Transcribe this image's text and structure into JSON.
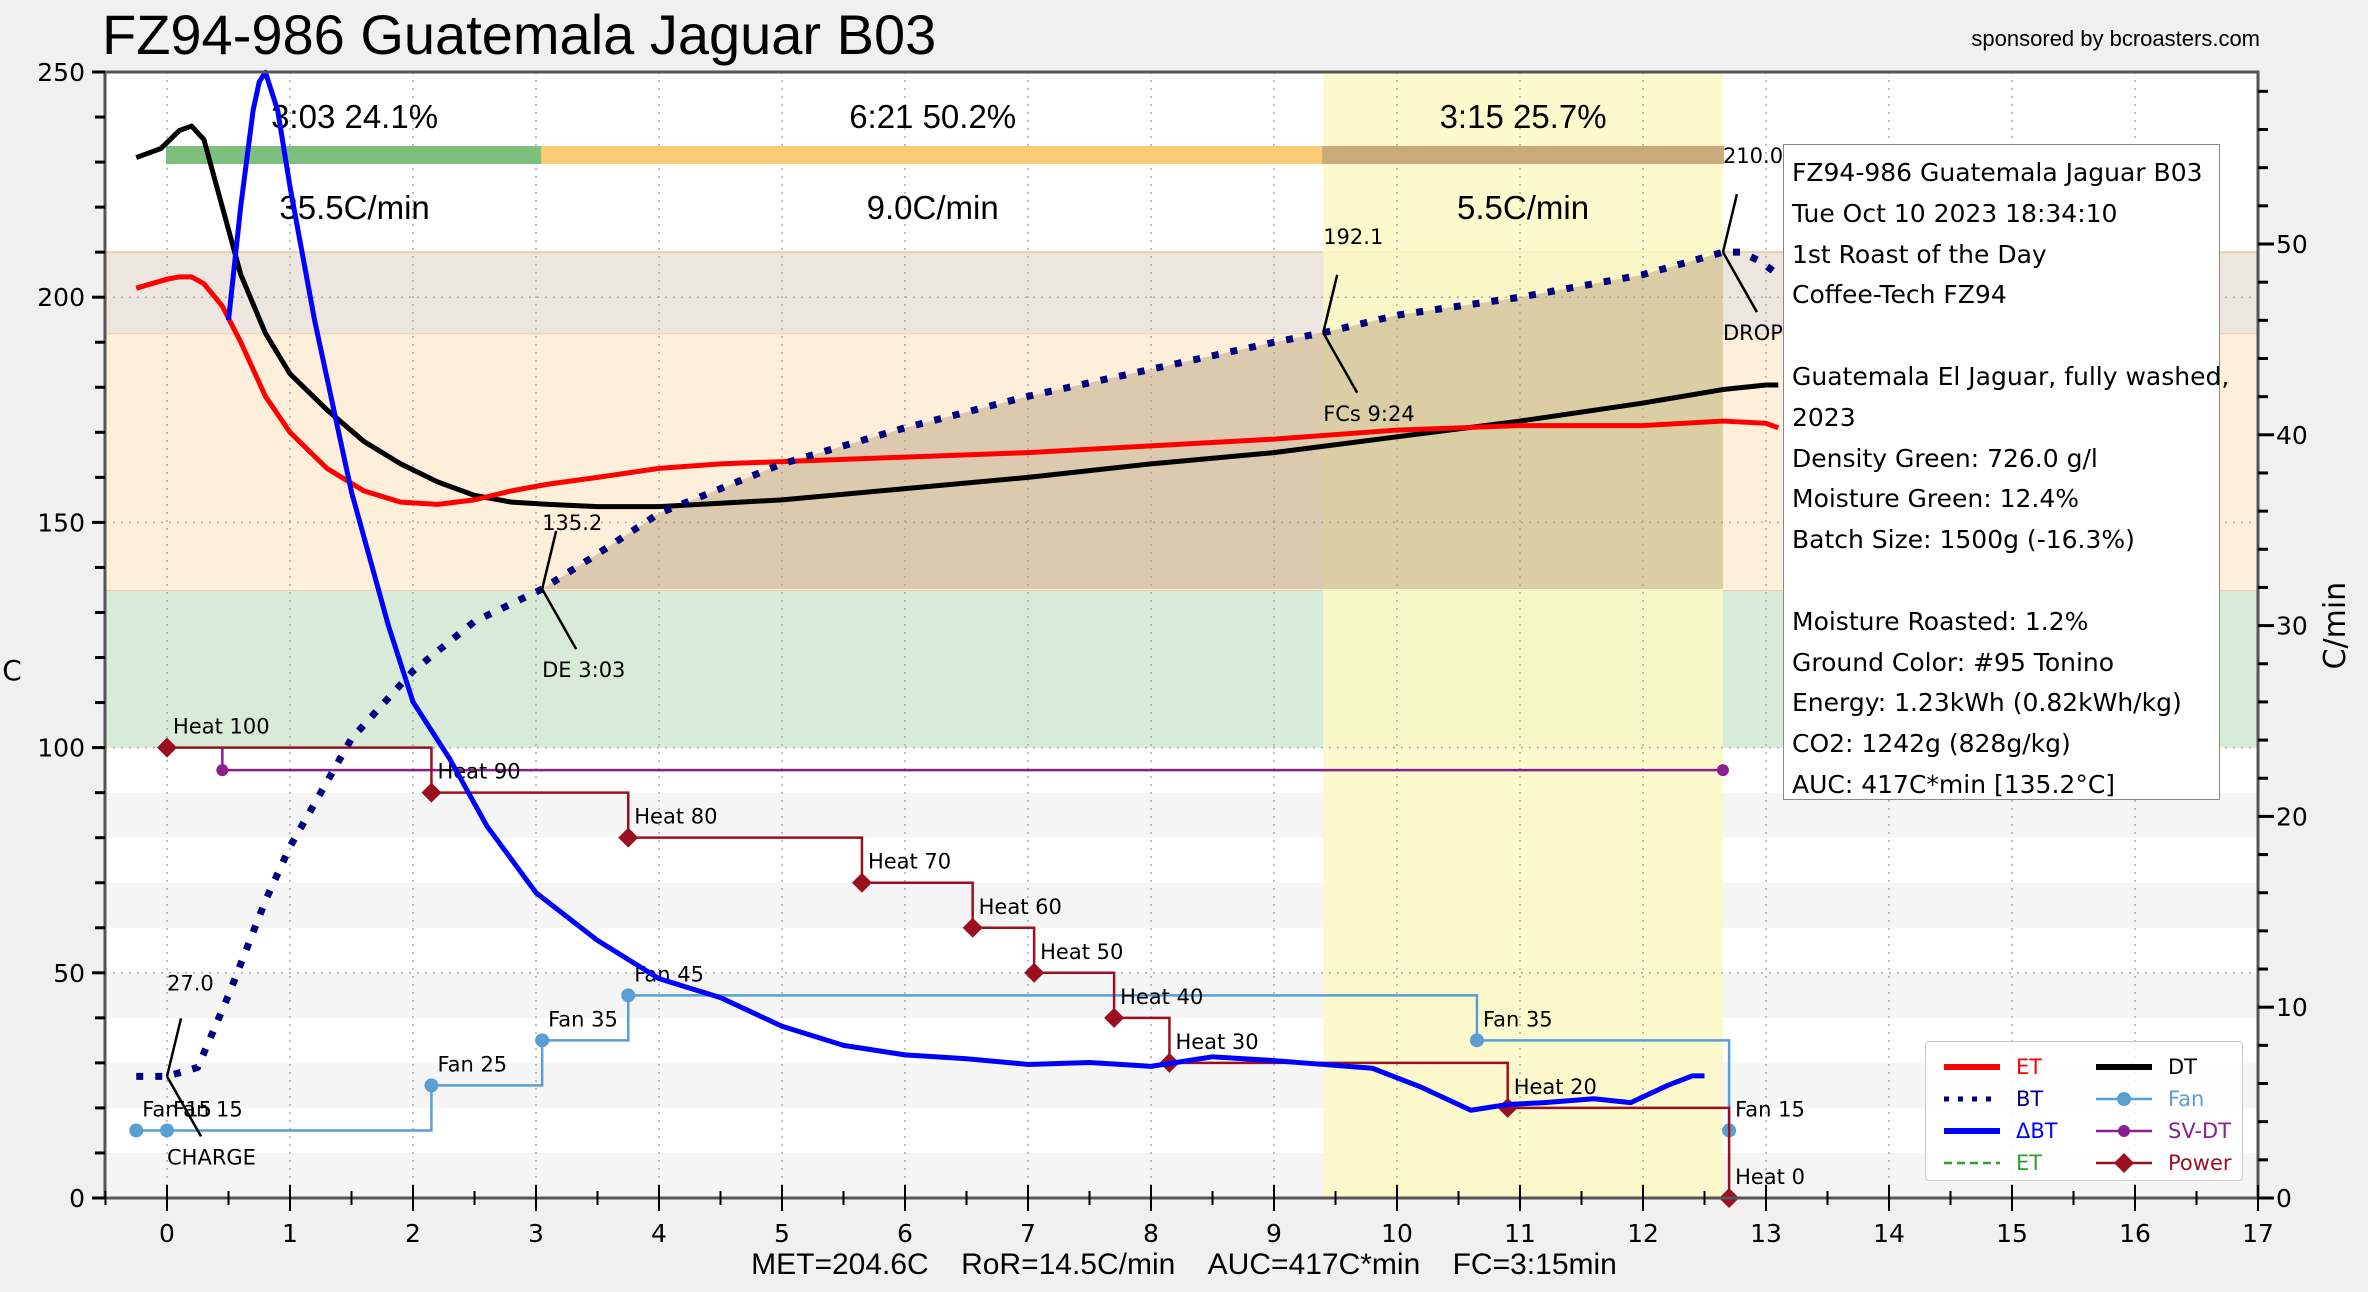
{
  "title": "FZ94-986 Guatemala Jaguar B03",
  "sponsor": "sponsored by bcroasters.com",
  "info_box": [
    "FZ94-986 Guatemala Jaguar B03",
    "Tue Oct 10 2023 18:34:10",
    "1st Roast of the Day",
    "Coffee-Tech FZ94",
    "",
    "Guatemala El Jaguar, fully washed,",
    " 2023",
    "Density Green: 726.0 g/l",
    "Moisture Green: 12.4%",
    "Batch Size: 1500g (-16.3%)",
    "",
    "Moisture Roasted: 1.2%",
    "Ground Color: #95 Tonino",
    "Energy: 1.23kWh (0.82kWh/kg)",
    "CO2: 1242g (828g/kg)",
    "AUC: 417C*min [135.2°C]"
  ],
  "footer": {
    "met": "MET=204.6C",
    "ror": "RoR=14.5C/min",
    "auc": "AUC=417C*min",
    "fc": "FC=3:15min"
  },
  "chart_data": {
    "type": "line",
    "title": "FZ94-986 Guatemala Jaguar B03",
    "xlabel": "",
    "ylabel": "C",
    "y2label": "C/min",
    "xlim": [
      -0.5,
      17
    ],
    "ylim": [
      0,
      250
    ],
    "y2lim": [
      0,
      59
    ],
    "xticks": [
      0,
      1,
      2,
      3,
      4,
      5,
      6,
      7,
      8,
      9,
      10,
      11,
      12,
      13,
      14,
      15,
      16,
      17
    ],
    "yticks": [
      0,
      50,
      100,
      150,
      200,
      250
    ],
    "y2ticks": [
      0,
      10,
      20,
      30,
      40,
      50
    ],
    "grid": true,
    "legend_position": "bottom-right",
    "colors": {
      "ET": "#ff0000",
      "BT": "#00007f",
      "DeltaBT": "#0000ff",
      "DT": "#000000",
      "Fan": "#5a9fd4",
      "SV-DT": "#8b1f8f",
      "Power": "#9b1020",
      "ET2": "#2ca02c"
    },
    "bands": [
      {
        "from": 100,
        "to": 135,
        "color": "#d8ebd8"
      },
      {
        "from": 135,
        "to": 192,
        "color": "#fdefd9"
      },
      {
        "from": 192,
        "to": 210,
        "color": "#ece6df"
      }
    ],
    "phases": [
      {
        "start": 0,
        "end": 3.05,
        "time": "3:03",
        "pct": "24.1%",
        "ror": "35.5C/min",
        "color": "#7dbf7d"
      },
      {
        "start": 3.05,
        "end": 9.4,
        "time": "6:21",
        "pct": "50.2%",
        "ror": "9.0C/min",
        "color": "#fdcb78"
      },
      {
        "start": 9.4,
        "end": 12.65,
        "time": "3:15",
        "pct": "25.7%",
        "ror": "5.5C/min",
        "color": "#c8ab78"
      }
    ],
    "development_highlight": {
      "start": 9.4,
      "end": 12.65,
      "color": "#fbf8c4"
    },
    "series": [
      {
        "name": "ET",
        "axis": "left",
        "x": [
          -0.25,
          0,
          0.1,
          0.2,
          0.3,
          0.45,
          0.6,
          0.8,
          1.0,
          1.3,
          1.6,
          1.9,
          2.2,
          2.5,
          2.8,
          3.1,
          3.5,
          4.0,
          4.5,
          5,
          6,
          7,
          8,
          9,
          10,
          11,
          12,
          12.65,
          13,
          13.1
        ],
        "y": [
          202,
          204,
          204.5,
          204.5,
          203,
          198,
          190,
          178,
          170,
          162,
          157,
          154.5,
          154,
          155,
          157,
          158.5,
          160,
          162,
          163,
          163.5,
          164.5,
          165.5,
          167,
          168.5,
          170.5,
          171.5,
          171.5,
          172.5,
          172,
          171
        ]
      },
      {
        "name": "DT",
        "axis": "left",
        "x": [
          -0.25,
          -0.05,
          0.1,
          0.2,
          0.3,
          0.45,
          0.6,
          0.8,
          1.0,
          1.3,
          1.6,
          1.9,
          2.2,
          2.5,
          2.8,
          3.1,
          3.5,
          4.0,
          5,
          6,
          7,
          8,
          9,
          10,
          11,
          12,
          12.65,
          13,
          13.1
        ],
        "y": [
          231,
          233,
          237,
          238,
          235,
          220,
          205,
          192,
          183,
          175,
          168,
          163,
          159,
          156,
          154.5,
          154,
          153.5,
          153.5,
          155,
          157.5,
          160,
          163,
          165.5,
          169,
          172.5,
          176.5,
          179.5,
          180.5,
          180.5
        ]
      },
      {
        "name": "BT",
        "axis": "left",
        "x": [
          -0.25,
          0,
          0.25,
          0.5,
          0.8,
          1.0,
          1.5,
          2.0,
          2.5,
          3.05,
          3.5,
          4,
          5,
          6,
          7,
          8,
          9,
          9.4,
          10,
          11,
          12,
          12.65,
          12.8,
          12.95,
          13.1
        ],
        "y": [
          27,
          27,
          29,
          45,
          66,
          78,
          102,
          117,
          128,
          135.2,
          143,
          152,
          163,
          171,
          178,
          184,
          190,
          192.1,
          196,
          200,
          205,
          210,
          210,
          208,
          205
        ]
      },
      {
        "name": "DeltaBT",
        "axis": "right",
        "x": [
          0.5,
          0.6,
          0.7,
          0.75,
          0.8,
          0.9,
          1.0,
          1.2,
          1.5,
          1.8,
          2.0,
          2.3,
          2.6,
          3.0,
          3.5,
          4.0,
          4.5,
          5.0,
          5.5,
          6.0,
          6.5,
          7.0,
          7.5,
          8.0,
          8.5,
          9.0,
          9.4,
          9.8,
          10.2,
          10.6,
          10.9,
          11.2,
          11.6,
          11.9,
          12.2,
          12.4,
          12.5
        ],
        "y": [
          46,
          52,
          57,
          58.5,
          59,
          57,
          53,
          46,
          37,
          30,
          26,
          23,
          19.5,
          16,
          13.5,
          11.5,
          10.5,
          9,
          8,
          7.5,
          7.3,
          7.0,
          7.1,
          6.9,
          7.4,
          7.2,
          7.0,
          6.8,
          5.8,
          4.6,
          4.9,
          5.0,
          5.2,
          5.0,
          5.9,
          6.4,
          6.4
        ]
      },
      {
        "name": "Fan",
        "axis": "left",
        "type": "step",
        "x": [
          -0.25,
          0,
          2.15,
          3.05,
          3.75,
          10.65,
          12.7
        ],
        "y": [
          15,
          15,
          25,
          35,
          45,
          35,
          15
        ]
      },
      {
        "name": "SV-DT",
        "axis": "left",
        "type": "step",
        "x": [
          0.45,
          12.65
        ],
        "y": [
          95,
          95
        ]
      },
      {
        "name": "Power",
        "axis": "left",
        "type": "step",
        "x": [
          0,
          2.15,
          3.75,
          5.65,
          6.55,
          7.05,
          7.7,
          8.15,
          10.9,
          12.7
        ],
        "y": [
          100,
          90,
          80,
          70,
          60,
          50,
          40,
          30,
          20,
          0
        ]
      }
    ],
    "step_labels": [
      {
        "series": "Fan",
        "x": -0.25,
        "y": 15,
        "text": "Fan 15"
      },
      {
        "series": "Fan",
        "x": 0,
        "y": 15,
        "text": "Fan 15"
      },
      {
        "series": "Fan",
        "x": 2.15,
        "y": 25,
        "text": "Fan 25"
      },
      {
        "series": "Fan",
        "x": 3.05,
        "y": 35,
        "text": "Fan 35"
      },
      {
        "series": "Fan",
        "x": 3.75,
        "y": 45,
        "text": "Fan 45"
      },
      {
        "series": "Fan",
        "x": 10.65,
        "y": 35,
        "text": "Fan 35"
      },
      {
        "series": "Fan",
        "x": 12.7,
        "y": 15,
        "text": "Fan 15"
      },
      {
        "series": "Power",
        "x": 0,
        "y": 100,
        "text": "Heat 100"
      },
      {
        "series": "Power",
        "x": 2.15,
        "y": 90,
        "text": "Heat 90"
      },
      {
        "series": "Power",
        "x": 3.75,
        "y": 80,
        "text": "Heat 80"
      },
      {
        "series": "Power",
        "x": 5.65,
        "y": 70,
        "text": "Heat 70"
      },
      {
        "series": "Power",
        "x": 6.55,
        "y": 60,
        "text": "Heat 60"
      },
      {
        "series": "Power",
        "x": 7.05,
        "y": 50,
        "text": "Heat 50"
      },
      {
        "series": "Power",
        "x": 7.7,
        "y": 40,
        "text": "Heat 40"
      },
      {
        "series": "Power",
        "x": 8.15,
        "y": 30,
        "text": "Heat 30"
      },
      {
        "series": "Power",
        "x": 10.9,
        "y": 20,
        "text": "Heat 20"
      },
      {
        "series": "Power",
        "x": 12.7,
        "y": 0,
        "text": "Heat 0"
      }
    ],
    "annotations": [
      {
        "x": 0,
        "y": 27,
        "top": "27.0",
        "bottom": "CHARGE"
      },
      {
        "x": 3.05,
        "y": 135.2,
        "top": "135.2",
        "bottom": "DE 3:03"
      },
      {
        "x": 9.4,
        "y": 192.1,
        "top": "192.1",
        "bottom": "FCs 9:24"
      },
      {
        "x": 12.65,
        "y": 210,
        "top": "210.0",
        "bottom": "DROP"
      }
    ],
    "legend": [
      {
        "label": "ET",
        "color": "#ff0000",
        "style": "solid-thick"
      },
      {
        "label": "BT",
        "color": "#00007f",
        "style": "dotted"
      },
      {
        "label": "ΔBT",
        "color": "#0000ff",
        "style": "solid-thick"
      },
      {
        "label": "ET",
        "color": "#2ca02c",
        "style": "dashed"
      },
      {
        "label": "DT",
        "color": "#000000",
        "style": "solid-thick"
      },
      {
        "label": "Fan",
        "color": "#5a9fd4",
        "style": "circle"
      },
      {
        "label": "SV-DT",
        "color": "#8b1f8f",
        "style": "hexagon"
      },
      {
        "label": "Power",
        "color": "#9b1020",
        "style": "diamond"
      }
    ]
  }
}
